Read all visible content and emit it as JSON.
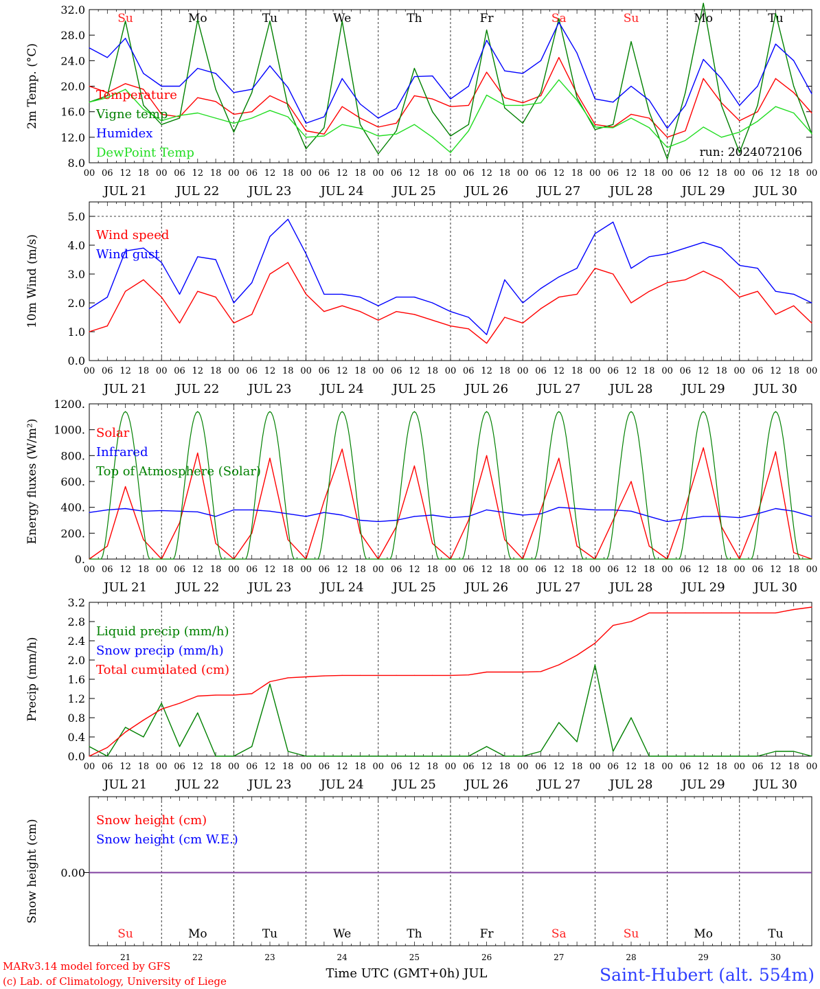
{
  "day_labels": [
    "Su",
    "Mo",
    "Tu",
    "We",
    "Th",
    "Fr",
    "Sa",
    "Su",
    "Mo",
    "Tu"
  ],
  "weekend_color": "#ff2020",
  "date_labels": [
    "JUL 21",
    "JUL 22",
    "JUL 23",
    "JUL 24",
    "JUL 25",
    "JUL 26",
    "JUL 27",
    "JUL 28",
    "JUL 29",
    "JUL 30"
  ],
  "hour_ticks": [
    "00",
    "06",
    "12",
    "18"
  ],
  "hour_end": "00",
  "day_numbers": [
    "21",
    "22",
    "23",
    "24",
    "25",
    "26",
    "27",
    "28",
    "29",
    "30"
  ],
  "run_label": "run: 2024072106",
  "footer": {
    "model": "MARv3.14 model forced by GFS",
    "lab": "(c) Lab. of Climatology, University of Liege",
    "time_axis": "Time UTC (GMT+0h) JUL",
    "station": "Saint-Hubert (alt. 554m)"
  },
  "chart_data": [
    {
      "id": "temperature",
      "type": "line",
      "ylabel": "2m Temp. (°C)",
      "ylim": [
        8,
        32
      ],
      "yticks": [
        "8.0",
        "12.0",
        "16.0",
        "20.0",
        "24.0",
        "28.0",
        "32.0"
      ],
      "x_hours": [
        0,
        6,
        12,
        18,
        24,
        30,
        36,
        42,
        48,
        54,
        60,
        66,
        72,
        78,
        84,
        90,
        96,
        102,
        108,
        114,
        120,
        126,
        132,
        138,
        144,
        150,
        156,
        162,
        168,
        174,
        180,
        186,
        192,
        198,
        204,
        210,
        216,
        222,
        228,
        234,
        240
      ],
      "series": [
        {
          "name": "Temperature",
          "color": "#ff0000",
          "values": [
            20.0,
            19.0,
            20.4,
            19.5,
            15.6,
            15.2,
            18.2,
            17.6,
            15.6,
            16.0,
            18.5,
            17.2,
            13.0,
            12.5,
            16.8,
            15.0,
            13.6,
            14.2,
            18.5,
            18.0,
            16.8,
            17.0,
            22.2,
            18.2,
            17.4,
            18.5,
            24.5,
            18.8,
            14.0,
            13.6,
            15.6,
            15.0,
            12.0,
            13.0,
            21.2,
            17.4,
            14.6,
            16.0,
            21.2,
            19.0,
            15.8
          ]
        },
        {
          "name": "Vigne temp",
          "color": "#008000",
          "values": [
            17.5,
            18.5,
            30.2,
            17.0,
            14.0,
            15.0,
            30.4,
            19.5,
            12.8,
            19.0,
            30.2,
            16.8,
            10.2,
            13.5,
            30.2,
            14.0,
            9.4,
            13.0,
            22.8,
            16.0,
            12.2,
            14.0,
            28.8,
            16.6,
            14.2,
            19.0,
            30.6,
            18.2,
            13.2,
            14.0,
            27.0,
            16.0,
            8.6,
            19.0,
            33.0,
            17.0,
            9.6,
            17.0,
            31.4,
            20.0,
            12.5
          ]
        },
        {
          "name": "Humidex",
          "color": "#0000ff",
          "values": [
            26.0,
            24.5,
            27.5,
            22.0,
            20.0,
            20.0,
            22.8,
            22.0,
            19.0,
            19.5,
            23.2,
            19.8,
            14.2,
            15.2,
            21.2,
            17.2,
            15.0,
            16.5,
            21.5,
            21.6,
            18.0,
            20.0,
            27.2,
            22.4,
            22.0,
            24.0,
            30.0,
            25.2,
            18.0,
            17.5,
            20.0,
            17.8,
            13.4,
            17.0,
            24.2,
            21.2,
            17.0,
            20.0,
            26.6,
            24.0,
            18.8
          ]
        },
        {
          "name": "DewPoint Temp",
          "color": "#22dd22",
          "values": [
            17.5,
            18.2,
            19.5,
            16.4,
            14.6,
            15.4,
            15.8,
            15.0,
            14.2,
            15.0,
            16.2,
            15.2,
            12.0,
            12.2,
            14.0,
            13.4,
            12.2,
            12.5,
            14.0,
            12.0,
            9.6,
            13.0,
            18.6,
            17.0,
            17.0,
            17.4,
            21.0,
            17.8,
            13.6,
            13.5,
            15.0,
            13.5,
            10.4,
            11.5,
            13.6,
            12.0,
            12.8,
            14.5,
            16.8,
            15.8,
            12.6
          ]
        }
      ]
    },
    {
      "id": "wind",
      "type": "line",
      "ylabel": "10m Wind (m/s)",
      "ylim": [
        0,
        5.5
      ],
      "yticks": [
        "0.0",
        "1.0",
        "2.0",
        "3.0",
        "4.0",
        "5.0"
      ],
      "dashed_line": 5.0,
      "x_hours": [
        0,
        6,
        12,
        18,
        24,
        30,
        36,
        42,
        48,
        54,
        60,
        66,
        72,
        78,
        84,
        90,
        96,
        102,
        108,
        114,
        120,
        126,
        132,
        138,
        144,
        150,
        156,
        162,
        168,
        174,
        180,
        186,
        192,
        198,
        204,
        210,
        216,
        222,
        228,
        234,
        240
      ],
      "series": [
        {
          "name": "Wind speed",
          "color": "#ff0000",
          "values": [
            1.0,
            1.2,
            2.4,
            2.8,
            2.2,
            1.3,
            2.4,
            2.2,
            1.3,
            1.6,
            3.0,
            3.4,
            2.3,
            1.7,
            1.9,
            1.7,
            1.4,
            1.7,
            1.6,
            1.4,
            1.2,
            1.1,
            0.6,
            1.5,
            1.3,
            1.8,
            2.2,
            2.3,
            3.2,
            3.0,
            2.0,
            2.4,
            2.7,
            2.8,
            3.1,
            2.8,
            2.2,
            2.4,
            1.6,
            1.9,
            1.3
          ]
        },
        {
          "name": "Wind gust",
          "color": "#0000ff",
          "values": [
            1.8,
            2.2,
            3.8,
            3.9,
            3.4,
            2.3,
            3.6,
            3.5,
            2.0,
            2.7,
            4.3,
            4.9,
            3.7,
            2.3,
            2.3,
            2.2,
            1.9,
            2.2,
            2.2,
            2.0,
            1.7,
            1.5,
            0.9,
            2.8,
            2.0,
            2.5,
            2.9,
            3.2,
            4.4,
            4.8,
            3.2,
            3.6,
            3.7,
            3.9,
            4.1,
            3.9,
            3.3,
            3.2,
            2.4,
            2.3,
            2.0
          ]
        }
      ]
    },
    {
      "id": "energy",
      "type": "line",
      "ylabel": "Energy fluxes (W/m²)",
      "ylim": [
        0,
        1200
      ],
      "yticks": [
        "0.",
        "200.",
        "400.",
        "600.",
        "800.",
        "1000.",
        "1200."
      ],
      "x_hours": [
        0,
        6,
        12,
        18,
        24,
        30,
        36,
        42,
        48,
        54,
        60,
        66,
        72,
        78,
        84,
        90,
        96,
        102,
        108,
        114,
        120,
        126,
        132,
        138,
        144,
        150,
        156,
        162,
        168,
        174,
        180,
        186,
        192,
        198,
        204,
        210,
        216,
        222,
        228,
        234,
        240
      ],
      "series": [
        {
          "name": "Solar",
          "color": "#ff0000",
          "values": [
            0,
            100,
            560,
            150,
            0,
            280,
            820,
            120,
            0,
            200,
            780,
            150,
            0,
            450,
            850,
            200,
            0,
            250,
            720,
            120,
            0,
            300,
            800,
            150,
            0,
            380,
            780,
            100,
            0,
            300,
            600,
            100,
            0,
            400,
            860,
            250,
            0,
            350,
            830,
            50,
            0
          ]
        },
        {
          "name": "Infrared",
          "color": "#0000ff",
          "values": [
            360,
            380,
            390,
            370,
            375,
            370,
            365,
            330,
            380,
            380,
            370,
            350,
            330,
            360,
            340,
            300,
            290,
            300,
            330,
            340,
            320,
            330,
            380,
            360,
            340,
            350,
            400,
            390,
            380,
            380,
            370,
            330,
            290,
            310,
            330,
            330,
            320,
            350,
            390,
            370,
            330
          ]
        },
        {
          "name": "Top of Atmosphere (Solar)",
          "color": "#008000",
          "peak": 1140
        }
      ]
    },
    {
      "id": "precip",
      "type": "line",
      "ylabel": "Precip (mm/h)",
      "ylim": [
        0,
        3.2
      ],
      "yticks": [
        "0.0",
        "0.4",
        "0.8",
        "1.2",
        "1.6",
        "2.0",
        "2.4",
        "2.8",
        "3.2"
      ],
      "x_hours": [
        0,
        6,
        12,
        18,
        24,
        30,
        36,
        42,
        48,
        54,
        60,
        66,
        72,
        78,
        84,
        90,
        96,
        102,
        108,
        114,
        120,
        126,
        132,
        138,
        144,
        150,
        156,
        162,
        168,
        174,
        180,
        186,
        192,
        198,
        204,
        210,
        216,
        222,
        228,
        234,
        240
      ],
      "series": [
        {
          "name": "Liquid precip (mm/h)",
          "color": "#008000",
          "values": [
            0.2,
            0.0,
            0.6,
            0.4,
            1.1,
            0.2,
            0.9,
            0.0,
            0.0,
            0.2,
            1.5,
            0.1,
            0.0,
            0.0,
            0.0,
            0.0,
            0.0,
            0.0,
            0.0,
            0.0,
            0.0,
            0.0,
            0.2,
            0.0,
            0.0,
            0.1,
            0.7,
            0.3,
            1.9,
            0.1,
            0.8,
            0.0,
            0.0,
            0.0,
            0.0,
            0.0,
            0.0,
            0.0,
            0.1,
            0.1,
            0.0
          ]
        },
        {
          "name": "Snow precip (mm/h)",
          "color": "#0000ff",
          "values": []
        },
        {
          "name": "Total cumulated (cm)",
          "color": "#ff0000",
          "values": [
            0.0,
            0.18,
            0.5,
            0.75,
            0.98,
            1.1,
            1.25,
            1.27,
            1.27,
            1.3,
            1.55,
            1.63,
            1.65,
            1.67,
            1.68,
            1.68,
            1.68,
            1.68,
            1.68,
            1.68,
            1.68,
            1.69,
            1.75,
            1.75,
            1.75,
            1.76,
            1.9,
            2.1,
            2.35,
            2.72,
            2.8,
            2.98,
            2.98,
            2.98,
            2.98,
            2.98,
            2.98,
            2.98,
            2.98,
            3.05,
            3.1
          ]
        }
      ]
    },
    {
      "id": "snow",
      "type": "line",
      "ylabel": "Snow height (cm)",
      "ylim": [
        -1,
        1
      ],
      "yticks": [
        "0.00"
      ],
      "series": [
        {
          "name": "Snow height (cm)",
          "color": "#ff0000",
          "values": [
            0,
            0
          ]
        },
        {
          "name": "Snow height (cm W.E.)",
          "color": "#0000ff",
          "values": [
            0,
            0
          ]
        }
      ],
      "line_color": "#8040a0"
    }
  ]
}
